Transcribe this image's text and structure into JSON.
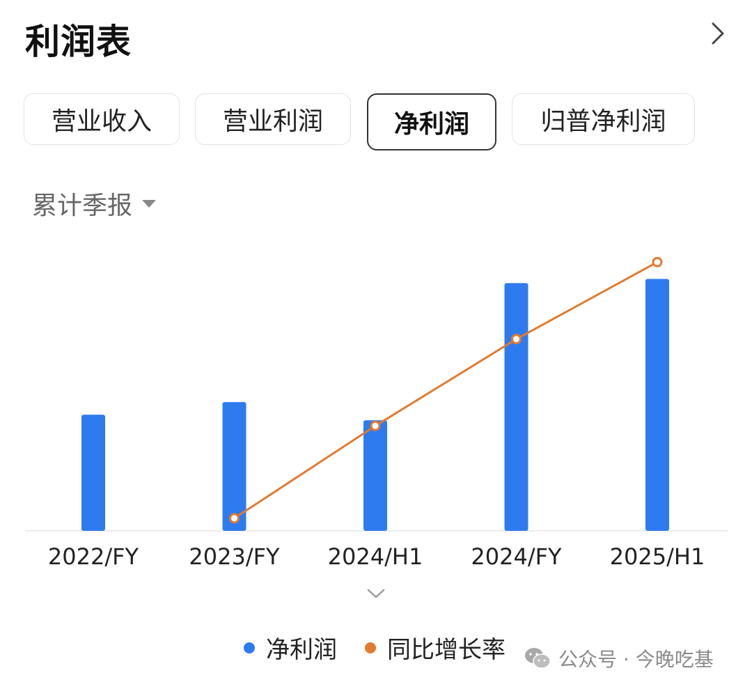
{
  "header": {
    "title": "利润表"
  },
  "tabs": [
    {
      "label": "营业收入"
    },
    {
      "label": "营业利润"
    },
    {
      "label": "净利润"
    },
    {
      "label": "归普净利润"
    }
  ],
  "period_selector": {
    "label": "累计季报"
  },
  "colors": {
    "bar": "#2E7BF0",
    "line": "#E27A2F",
    "axis": "#e6e6e6",
    "text": "#222222"
  },
  "chart_data": {
    "type": "bar",
    "categories": [
      "2022/FY",
      "2023/FY",
      "2024/H1",
      "2024/FY",
      "2025/H1"
    ],
    "series": [
      {
        "name": "净利润",
        "kind": "bar",
        "values": [
          166,
          184,
          158,
          354,
          360
        ]
      },
      {
        "name": "同比增长率",
        "kind": "line",
        "values": [
          null,
          18,
          150,
          274,
          384
        ]
      }
    ],
    "ylim": [
      0,
      430
    ],
    "grid": false,
    "legend_position": "bottom"
  },
  "legend": {
    "items": [
      {
        "label": "净利润"
      },
      {
        "label": "同比增长率"
      }
    ]
  },
  "watermark": {
    "text": "公众号 · 今晚吃基"
  }
}
